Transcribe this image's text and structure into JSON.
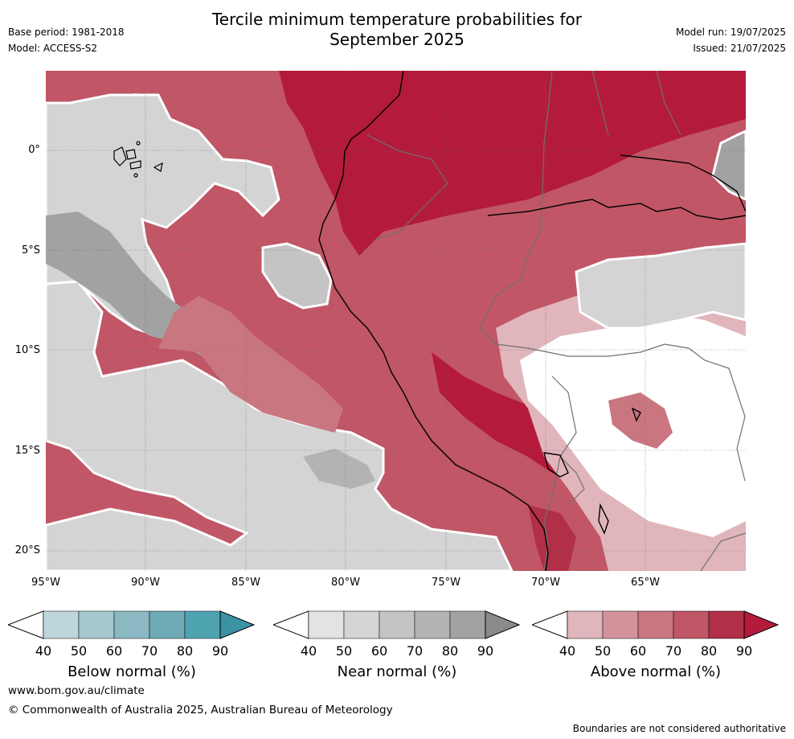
{
  "title_line1": "Tercile minimum temperature probabilities for",
  "title_line2": "September 2025",
  "meta": {
    "base_period": "Base period: 1981-2018",
    "model": "Model: ACCESS-S2",
    "model_run": "Model run: 19/07/2025",
    "issued": "Issued: 21/07/2025"
  },
  "map": {
    "lat_labels": [
      "0°",
      "5°S",
      "10°S",
      "15°S",
      "20°S"
    ],
    "lon_labels": [
      "95°W",
      "90°W",
      "85°W",
      "80°W",
      "75°W",
      "70°W",
      "65°W"
    ]
  },
  "legends": [
    {
      "title": "Below normal (%)",
      "ticks": [
        "40",
        "50",
        "60",
        "70",
        "80",
        "90"
      ],
      "colors": [
        "#bdd6dc",
        "#a5c8cf",
        "#8bb8c2",
        "#6eaab5",
        "#4ea3b1",
        "#3b92a3"
      ]
    },
    {
      "title": "Near normal (%)",
      "ticks": [
        "40",
        "50",
        "60",
        "70",
        "80",
        "90"
      ],
      "colors": [
        "#e3e3e3",
        "#d4d4d4",
        "#c4c4c4",
        "#b3b3b3",
        "#a2a2a2",
        "#8a8a8a"
      ]
    },
    {
      "title": "Above normal (%)",
      "ticks": [
        "40",
        "50",
        "60",
        "70",
        "80",
        "90"
      ],
      "colors": [
        "#e0b5bb",
        "#d3939c",
        "#c97680",
        "#c05666",
        "#b12f47",
        "#b31a3c"
      ]
    }
  ],
  "footer": {
    "website": "www.bom.gov.au/climate",
    "copyright": "© Commonwealth of Australia 2025, Australian Bureau of Meteorology",
    "disclaimer": "Boundaries are not considered authoritative"
  }
}
